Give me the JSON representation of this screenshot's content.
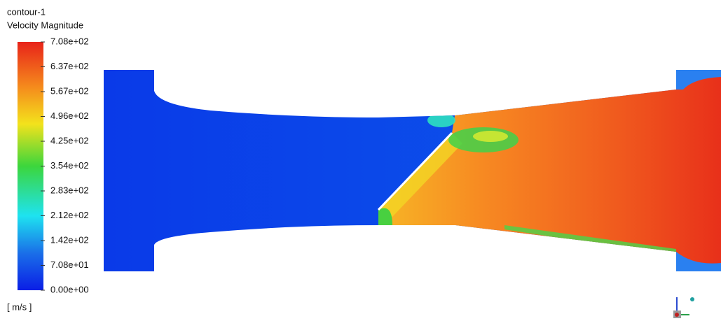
{
  "header": {
    "title": "contour-1",
    "subtitle": "Velocity Magnitude"
  },
  "colorbar": {
    "labels": [
      "7.08e+02",
      "6.37e+02",
      "5.67e+02",
      "4.96e+02",
      "4.25e+02",
      "3.54e+02",
      "2.83e+02",
      "2.12e+02",
      "1.42e+02",
      "7.08e+01",
      "0.00e+00"
    ],
    "units": "[ m/s ]"
  }
}
